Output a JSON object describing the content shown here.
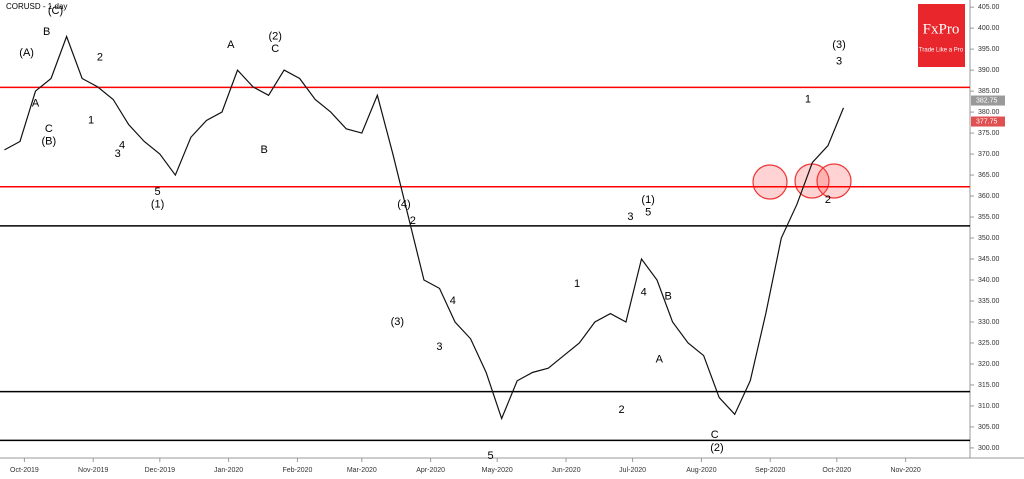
{
  "chart_data": {
    "type": "line",
    "title": "CORUSD - 1 day",
    "xlim": [
      -11,
      426
    ],
    "xticks": [
      {
        "value": 0,
        "label": "Oct-2019"
      },
      {
        "value": 31,
        "label": "Nov-2019"
      },
      {
        "value": 61,
        "label": "Dec-2019"
      },
      {
        "value": 92,
        "label": "Jan-2020"
      },
      {
        "value": 123,
        "label": "Feb-2020"
      },
      {
        "value": 152,
        "label": "Mar-2020"
      },
      {
        "value": 183,
        "label": "Apr-2020"
      },
      {
        "value": 213,
        "label": "May-2020"
      },
      {
        "value": 244,
        "label": "Jun-2020"
      },
      {
        "value": 274,
        "label": "Jul-2020"
      },
      {
        "value": 305,
        "label": "Aug-2020"
      },
      {
        "value": 336,
        "label": "Sep-2020"
      },
      {
        "value": 366,
        "label": "Oct-2020"
      },
      {
        "value": 397,
        "label": "Nov-2020"
      }
    ],
    "ylim": [
      297.6,
      406.7
    ],
    "yticks": [
      {
        "value": 300,
        "label": "300.00"
      },
      {
        "value": 305,
        "label": "305.00"
      },
      {
        "value": 310,
        "label": "310.00"
      },
      {
        "value": 315,
        "label": "315.00"
      },
      {
        "value": 320,
        "label": "320.00"
      },
      {
        "value": 325,
        "label": "325.00"
      },
      {
        "value": 330,
        "label": "330.00"
      },
      {
        "value": 335,
        "label": "335.00"
      },
      {
        "value": 340,
        "label": "340.00"
      },
      {
        "value": 345,
        "label": "345.00"
      },
      {
        "value": 350,
        "label": "350.00"
      },
      {
        "value": 355,
        "label": "355.00"
      },
      {
        "value": 360,
        "label": "360.00"
      },
      {
        "value": 365,
        "label": "365.00"
      },
      {
        "value": 370,
        "label": "370.00"
      },
      {
        "value": 375,
        "label": "375.00"
      },
      {
        "value": 380,
        "label": "380.00"
      },
      {
        "value": 385,
        "label": "385.00"
      },
      {
        "value": 390,
        "label": "390.00"
      },
      {
        "value": 395,
        "label": "395.00"
      },
      {
        "value": 400,
        "label": "400.00"
      },
      {
        "value": 405,
        "label": "405.00"
      }
    ],
    "x": [
      -9,
      -2,
      5,
      12,
      19,
      26,
      33,
      40,
      47,
      54,
      61,
      68,
      75,
      82,
      89,
      96,
      103,
      110,
      117,
      124,
      131,
      138,
      145,
      152,
      159,
      166,
      173,
      180,
      187,
      194,
      201,
      208,
      215,
      222,
      229,
      236,
      243,
      250,
      257,
      264,
      271,
      278,
      285,
      292,
      299,
      306,
      313,
      320,
      327,
      334,
      341,
      348,
      355,
      362,
      369
    ],
    "series": [
      {
        "color": "#111111",
        "values": [
          371,
          373,
          385,
          388,
          398,
          388,
          386,
          383,
          377,
          373,
          370,
          365,
          374,
          378,
          380,
          390,
          386,
          384,
          390,
          388,
          383,
          380,
          376,
          375,
          384,
          370,
          355,
          340,
          338,
          330,
          326,
          318,
          307,
          316,
          318,
          319,
          322,
          325,
          330,
          332,
          330,
          345,
          340,
          330,
          325,
          322,
          312,
          308,
          316,
          332,
          350,
          358,
          368,
          372,
          381
        ]
      }
    ],
    "levels": [
      {
        "value": 385.9,
        "color": "#ff0000"
      },
      {
        "value": 362.2,
        "color": "#ff0000"
      },
      {
        "value": 352.9,
        "color": "#000000"
      },
      {
        "value": 313.4,
        "color": "#000000"
      },
      {
        "value": 301.8,
        "color": "#000000"
      }
    ],
    "price_tags": [
      {
        "value": 382.75,
        "color": "#9a9a9a"
      },
      {
        "value": 377.75,
        "color": "#e05050"
      }
    ],
    "annotations": [
      {
        "text": "(A)",
        "x": 1,
        "y": 394
      },
      {
        "text": "A",
        "x": 5,
        "y": 382
      },
      {
        "text": "B",
        "x": 10,
        "y": 399
      },
      {
        "text": "C",
        "x": 11,
        "y": 376
      },
      {
        "text": "(B)",
        "x": 11,
        "y": 373
      },
      {
        "text": "(C)",
        "x": 14,
        "y": 404
      },
      {
        "text": "2",
        "x": 34,
        "y": 393
      },
      {
        "text": "1",
        "x": 30,
        "y": 378
      },
      {
        "text": "4",
        "x": 44,
        "y": 372
      },
      {
        "text": "3",
        "x": 42,
        "y": 370
      },
      {
        "text": "5",
        "x": 60,
        "y": 361
      },
      {
        "text": "(1)",
        "x": 60,
        "y": 358
      },
      {
        "text": "A",
        "x": 93,
        "y": 396
      },
      {
        "text": "(2)",
        "x": 113,
        "y": 398
      },
      {
        "text": "C",
        "x": 113,
        "y": 395
      },
      {
        "text": "B",
        "x": 108,
        "y": 371
      },
      {
        "text": "(4)",
        "x": 171,
        "y": 358
      },
      {
        "text": "2",
        "x": 175,
        "y": 354
      },
      {
        "text": "(3)",
        "x": 168,
        "y": 330
      },
      {
        "text": "3",
        "x": 187,
        "y": 324
      },
      {
        "text": "4",
        "x": 193,
        "y": 335
      },
      {
        "text": "5",
        "x": 210,
        "y": 298
      },
      {
        "text": "1",
        "x": 249,
        "y": 339
      },
      {
        "text": "3",
        "x": 273,
        "y": 355
      },
      {
        "text": "(1)",
        "x": 281,
        "y": 359
      },
      {
        "text": "5",
        "x": 281,
        "y": 356
      },
      {
        "text": "4",
        "x": 279,
        "y": 337
      },
      {
        "text": "B",
        "x": 290,
        "y": 336
      },
      {
        "text": "A",
        "x": 286,
        "y": 321
      },
      {
        "text": "2",
        "x": 269,
        "y": 309
      },
      {
        "text": "C",
        "x": 311,
        "y": 303
      },
      {
        "text": "(2)",
        "x": 312,
        "y": 300
      },
      {
        "text": "1",
        "x": 353,
        "y": 383
      },
      {
        "text": "2",
        "x": 362,
        "y": 359
      },
      {
        "text": "(3)",
        "x": 367,
        "y": 396
      },
      {
        "text": "3",
        "x": 367,
        "y": 392
      }
    ],
    "brand": "FxPro",
    "tagline": "Trade Like a Pro"
  }
}
